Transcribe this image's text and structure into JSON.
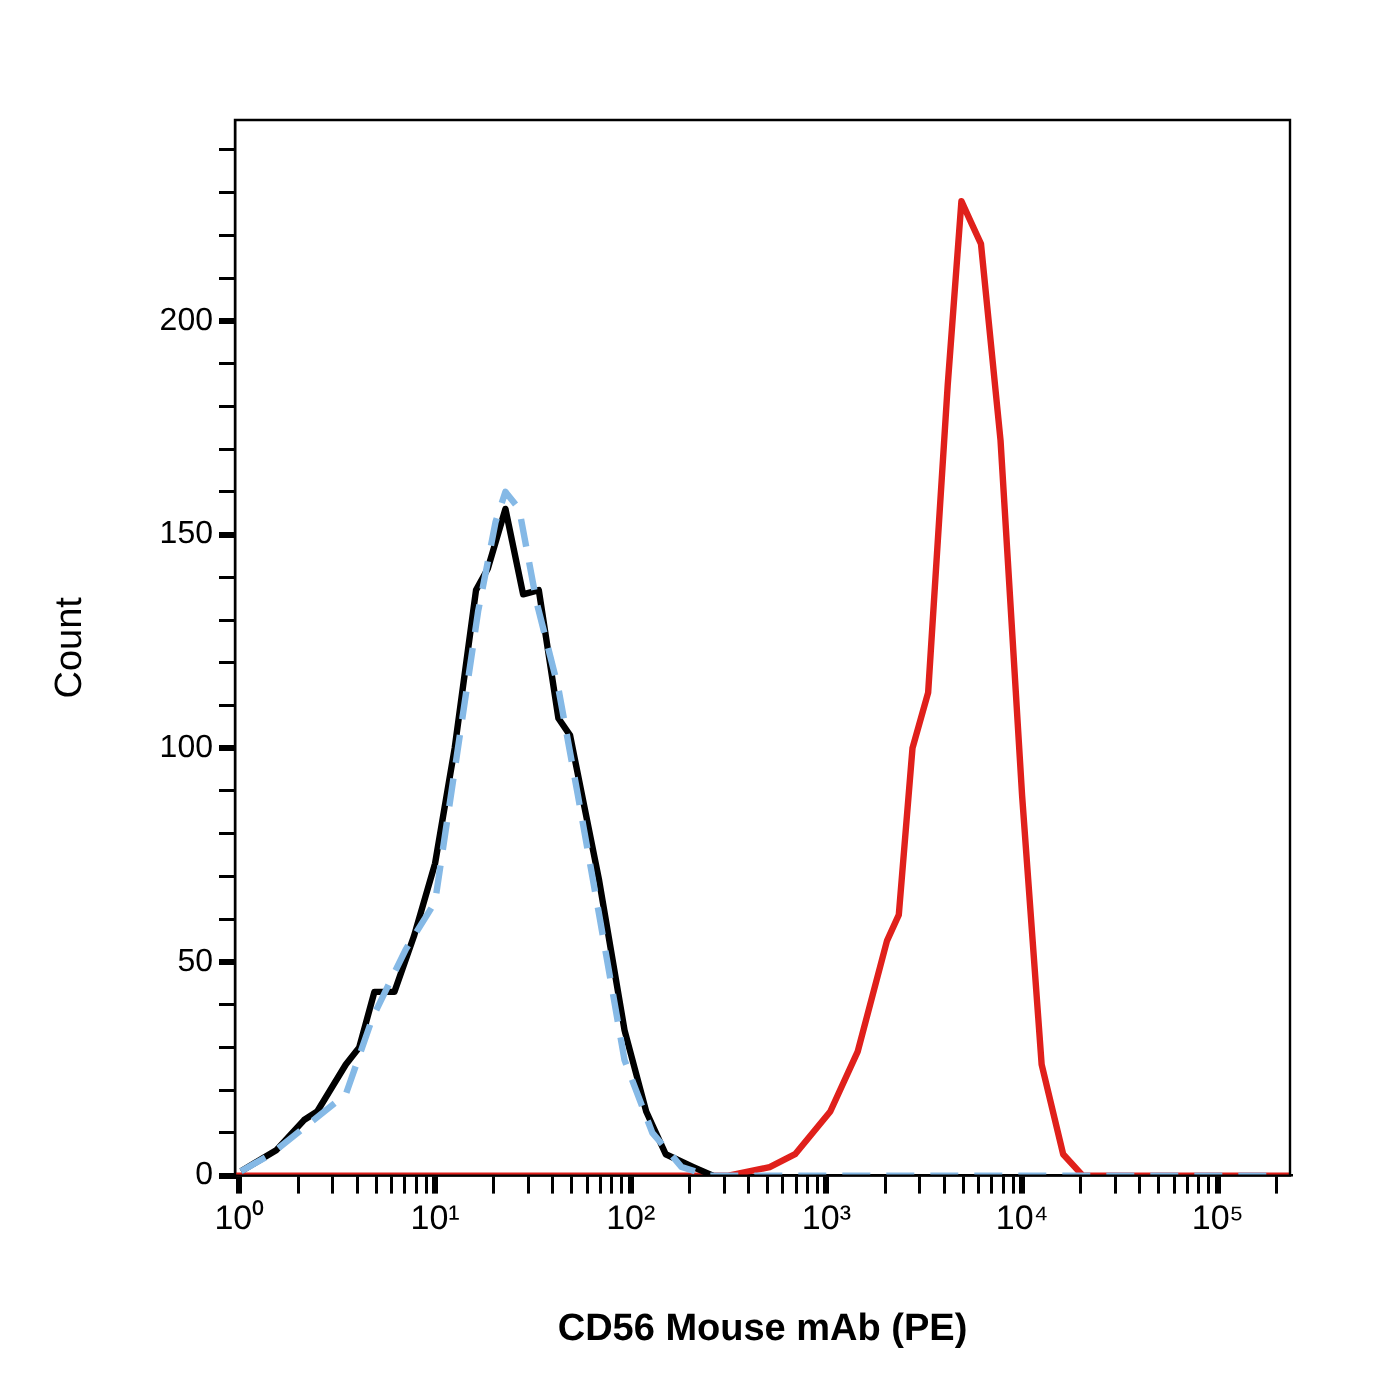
{
  "chart_data": {
    "type": "line",
    "xlabel": "CD56 Mouse mAb (PE)",
    "ylabel": "Count",
    "log": "x",
    "grid": false,
    "legend": false,
    "marker": "none",
    "xlim": [
      0.95,
      234000
    ],
    "ylim": [
      0,
      247
    ],
    "xticks": [
      {
        "value": 1,
        "label": "10⁰"
      },
      {
        "value": 2,
        "label": null
      },
      {
        "value": 3,
        "label": null
      },
      {
        "value": 4,
        "label": null
      },
      {
        "value": 5,
        "label": null
      },
      {
        "value": 6,
        "label": null
      },
      {
        "value": 7,
        "label": null
      },
      {
        "value": 8,
        "label": null
      },
      {
        "value": 9,
        "label": null
      },
      {
        "value": 10,
        "label": "10¹"
      },
      {
        "value": 20,
        "label": null
      },
      {
        "value": 30,
        "label": null
      },
      {
        "value": 40,
        "label": null
      },
      {
        "value": 50,
        "label": null
      },
      {
        "value": 60,
        "label": null
      },
      {
        "value": 70,
        "label": null
      },
      {
        "value": 80,
        "label": null
      },
      {
        "value": 90,
        "label": null
      },
      {
        "value": 100,
        "label": "10²"
      },
      {
        "value": 200,
        "label": null
      },
      {
        "value": 300,
        "label": null
      },
      {
        "value": 400,
        "label": null
      },
      {
        "value": 500,
        "label": null
      },
      {
        "value": 600,
        "label": null
      },
      {
        "value": 700,
        "label": null
      },
      {
        "value": 800,
        "label": null
      },
      {
        "value": 900,
        "label": null
      },
      {
        "value": 1000,
        "label": "10³"
      },
      {
        "value": 2000,
        "label": null
      },
      {
        "value": 3000,
        "label": null
      },
      {
        "value": 4000,
        "label": null
      },
      {
        "value": 5000,
        "label": null
      },
      {
        "value": 6000,
        "label": null
      },
      {
        "value": 7000,
        "label": null
      },
      {
        "value": 8000,
        "label": null
      },
      {
        "value": 9000,
        "label": null
      },
      {
        "value": 10000,
        "label": "10⁴"
      },
      {
        "value": 20000,
        "label": null
      },
      {
        "value": 30000,
        "label": null
      },
      {
        "value": 40000,
        "label": null
      },
      {
        "value": 50000,
        "label": null
      },
      {
        "value": 60000,
        "label": null
      },
      {
        "value": 70000,
        "label": null
      },
      {
        "value": 80000,
        "label": null
      },
      {
        "value": 90000,
        "label": null
      },
      {
        "value": 100000,
        "label": "10⁵"
      },
      {
        "value": 200000,
        "label": null
      }
    ],
    "yticks": [
      0,
      {
        "value": 10,
        "label": null
      },
      {
        "value": 20,
        "label": null
      },
      {
        "value": 30,
        "label": null
      },
      {
        "value": 40,
        "label": null
      },
      50,
      {
        "value": 60,
        "label": null
      },
      {
        "value": 70,
        "label": null
      },
      {
        "value": 80,
        "label": null
      },
      {
        "value": 90,
        "label": null
      },
      100,
      {
        "value": 110,
        "label": null
      },
      {
        "value": 120,
        "label": null
      },
      {
        "value": 130,
        "label": null
      },
      {
        "value": 140,
        "label": null
      },
      150,
      {
        "value": 160,
        "label": null
      },
      {
        "value": 170,
        "label": null
      },
      {
        "value": 180,
        "label": null
      },
      {
        "value": 190,
        "label": null
      },
      200,
      {
        "value": 210,
        "label": null
      },
      {
        "value": 220,
        "label": null
      },
      {
        "value": 230,
        "label": null
      },
      {
        "value": 240,
        "label": null
      }
    ],
    "series": [
      {
        "color": "#85b9e6",
        "line_style": "dashed",
        "x": [
          1.02,
          1.45,
          3.5,
          4.8,
          7.1,
          10,
          12.9,
          16.6,
          20.4,
          22.9,
          26.9,
          33.1,
          42.7,
          53.7,
          69,
          93,
          129,
          182,
          250,
          200000
        ],
        "values": [
          1,
          5,
          19,
          37,
          53,
          64,
          98,
          132,
          153,
          160,
          156,
          134,
          114,
          89,
          61,
          27,
          10,
          2,
          0,
          0
        ]
      },
      {
        "color": "#000000",
        "line_style": "solid",
        "x": [
          1.02,
          1.55,
          2.14,
          2.5,
          3.5,
          4.1,
          4.9,
          6.2,
          7.8,
          10,
          12.6,
          16.2,
          18.6,
          22.9,
          28.2,
          33.9,
          42.7,
          49,
          69,
          93,
          120,
          151,
          209,
          263
        ],
        "values": [
          1,
          6,
          13,
          15,
          26,
          30,
          43,
          43,
          56,
          73,
          100,
          137,
          142,
          156,
          136,
          137,
          107,
          103,
          69,
          34,
          15,
          5,
          2,
          0
        ]
      },
      {
        "color": "#e0201b",
        "line_style": "solid",
        "x": [
          0.95,
          316,
          513,
          692,
          1047,
          1445,
          2042,
          2344,
          2754,
          3311,
          4169,
          4898,
          5495,
          6166,
          7762,
          10000,
          12590,
          16220,
          20420,
          234000
        ],
        "values": [
          0,
          0,
          2,
          5,
          15,
          29,
          55,
          61,
          100,
          113,
          185,
          228,
          223,
          218,
          172,
          89,
          26,
          5,
          0,
          0
        ]
      }
    ]
  }
}
